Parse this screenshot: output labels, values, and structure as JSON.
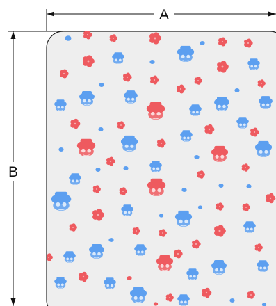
{
  "dimensions": {
    "width_label": "A",
    "height_label": "B"
  },
  "colors": {
    "line": "#111111",
    "card_fill": "#eeeeee",
    "card_stroke": "#222222",
    "pattern_red": "#ee5a5f",
    "pattern_blue": "#5c9ff0"
  },
  "pattern": {
    "motifs": [
      "character-head-motif",
      "flower-motif",
      "dot-motif"
    ]
  }
}
